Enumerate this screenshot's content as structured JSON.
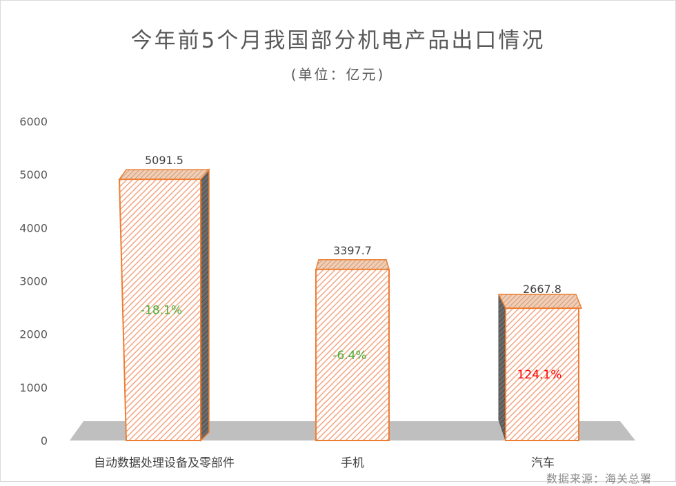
{
  "chart_data": {
    "type": "bar",
    "title": "今年前5个月我国部分机电产品出口情况",
    "subtitle": "(单位：亿元)",
    "source": "数据来源：海关总署",
    "categories": [
      "自动数据处理设备及零部件",
      "手机",
      "汽车"
    ],
    "values": [
      5091.5,
      3397.7,
      2667.8
    ],
    "value_labels": [
      "5091.5",
      "3397.7",
      "2667.8"
    ],
    "growth_labels": [
      "-18.1%",
      "-6.4%",
      "124.1%"
    ],
    "growth_colors": [
      "#4caf37",
      "#4caf37",
      "#ff0000"
    ],
    "yticks": [
      "0",
      "1000",
      "2000",
      "3000",
      "4000",
      "5000",
      "6000"
    ],
    "ylim": [
      0,
      6000
    ],
    "grid": false,
    "colors": {
      "bar_fill": "#ffffff",
      "bar_hatch": "#f4a582",
      "bar_edge": "#ed7d31",
      "bar_side_dark": "#555555",
      "floor": "#bfbfbf",
      "tick_text": "#595959"
    }
  }
}
